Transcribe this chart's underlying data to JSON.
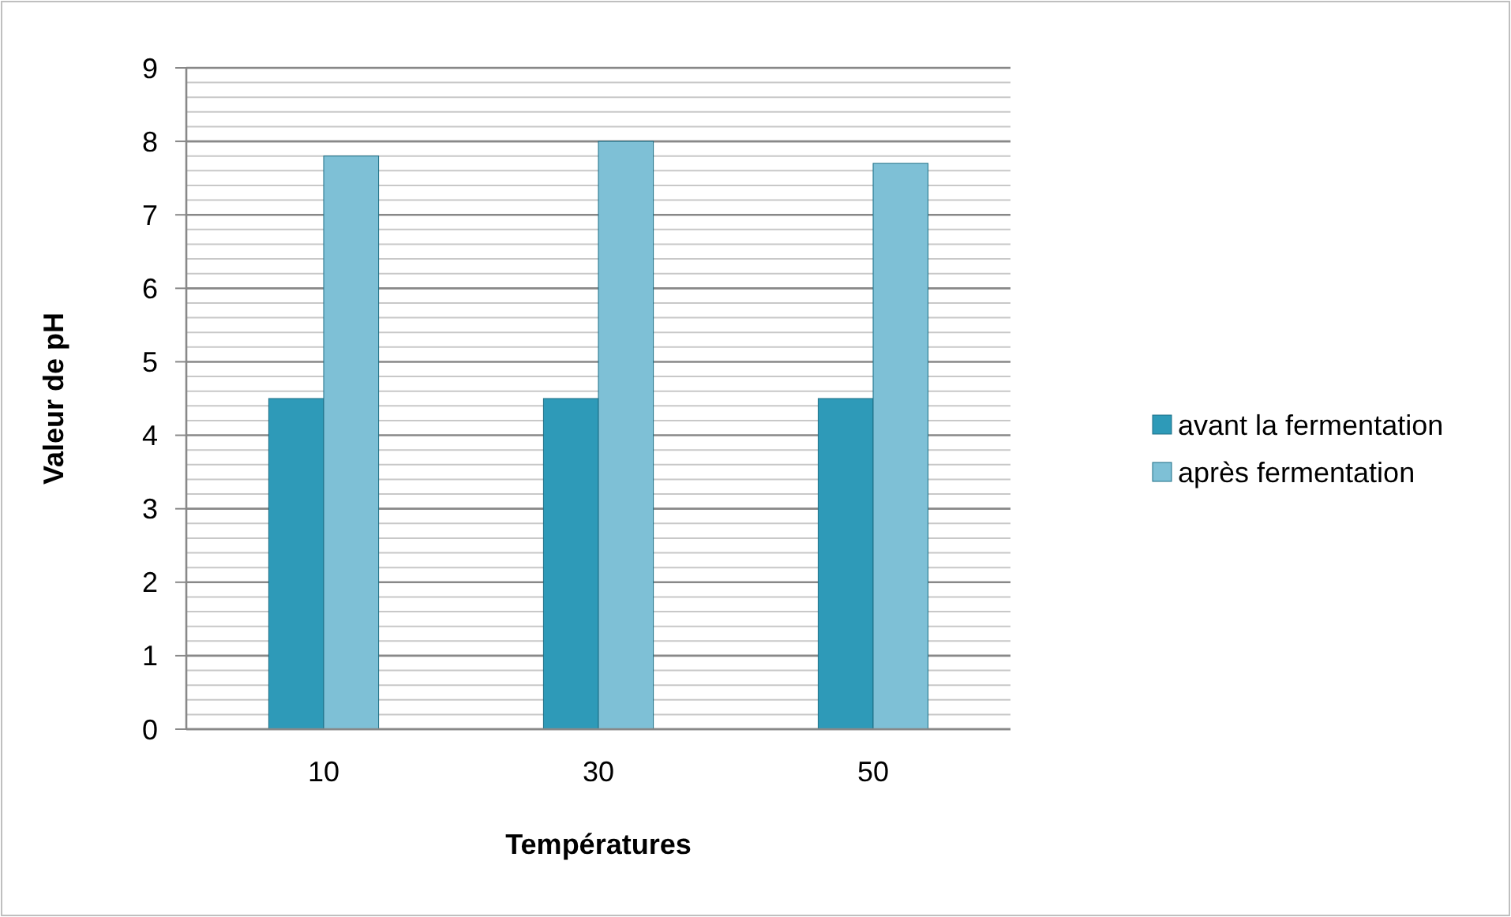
{
  "chart_data": {
    "type": "bar",
    "xlabel": "Températures",
    "ylabel": "Valeur de pH",
    "categories": [
      "10",
      "30",
      "50"
    ],
    "series": [
      {
        "name": "avant la fermentation",
        "color": "#2e9ab8",
        "values": [
          4.5,
          4.5,
          4.5
        ]
      },
      {
        "name": "après fermentation",
        "color": "#7ec0d6",
        "values": [
          7.8,
          8.0,
          7.7
        ]
      }
    ],
    "ylim": [
      0,
      9
    ],
    "yticks": [
      0,
      {
        "value": 0.2,
        "label": null
      },
      {
        "value": 0.4,
        "label": null
      },
      {
        "value": 0.6,
        "label": null
      },
      {
        "value": 0.8,
        "label": null
      },
      1,
      {
        "value": 1.2,
        "label": null
      },
      {
        "value": 1.4,
        "label": null
      },
      {
        "value": 1.6,
        "label": null
      },
      {
        "value": 1.8,
        "label": null
      },
      2,
      {
        "value": 2.2,
        "label": null
      },
      {
        "value": 2.4,
        "label": null
      },
      {
        "value": 2.6,
        "label": null
      },
      {
        "value": 2.8,
        "label": null
      },
      3,
      {
        "value": 3.2,
        "label": null
      },
      {
        "value": 3.4,
        "label": null
      },
      {
        "value": 3.6,
        "label": null
      },
      {
        "value": 3.8,
        "label": null
      },
      4,
      {
        "value": 4.2,
        "label": null
      },
      {
        "value": 4.4,
        "label": null
      },
      {
        "value": 4.6,
        "label": null
      },
      {
        "value": 4.8,
        "label": null
      },
      5,
      {
        "value": 5.2,
        "label": null
      },
      {
        "value": 5.4,
        "label": null
      },
      {
        "value": 5.6,
        "label": null
      },
      {
        "value": 5.8,
        "label": null
      },
      6,
      {
        "value": 6.2,
        "label": null
      },
      {
        "value": 6.4,
        "label": null
      },
      {
        "value": 6.6,
        "label": null
      },
      {
        "value": 6.8,
        "label": null
      },
      7,
      {
        "value": 7.2,
        "label": null
      },
      {
        "value": 7.4,
        "label": null
      },
      {
        "value": 7.6,
        "label": null
      },
      {
        "value": 7.8,
        "label": null
      },
      8,
      {
        "value": 8.2,
        "label": null
      },
      {
        "value": 8.4,
        "label": null
      },
      {
        "value": 8.6,
        "label": null
      },
      {
        "value": 8.8,
        "label": null
      },
      9
    ],
    "grid": "y",
    "legend": "right"
  }
}
